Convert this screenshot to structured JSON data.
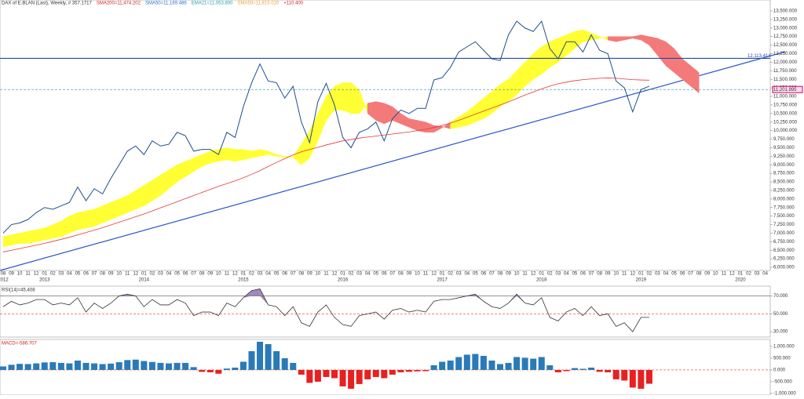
{
  "chart_data": [
    {
      "type": "line",
      "header": [
        {
          "text": "DAX of E.BLAN (Last), Weekly, # 357.1717",
          "color": "#333333"
        },
        {
          "text": "SMA200=11,474.202",
          "color": "#d62020"
        },
        {
          "text": "SMA50=11,169.486",
          "color": "#2a6fd6"
        },
        {
          "text": "EMA21=11,053.800",
          "color": "#20a0b0"
        },
        {
          "text": "SMA50=11,815.020",
          "color": "#f0a030"
        },
        {
          "text": "+110.400",
          "color": "#d62020"
        }
      ],
      "categories": [
        "08",
        "09",
        "10",
        "11",
        "12",
        "01",
        "02",
        "03",
        "04",
        "05",
        "06",
        "07",
        "08",
        "09",
        "10",
        "11",
        "12",
        "01",
        "02",
        "03",
        "04",
        "05",
        "06",
        "07",
        "08",
        "09",
        "10",
        "11",
        "12",
        "01",
        "02",
        "03",
        "04",
        "05",
        "06",
        "07",
        "08",
        "09",
        "10",
        "11",
        "12",
        "01",
        "02",
        "03",
        "04",
        "05",
        "06",
        "07",
        "08",
        "09",
        "10",
        "11",
        "12",
        "01",
        "02",
        "03",
        "04",
        "05",
        "06",
        "07",
        "08",
        "09",
        "10",
        "11",
        "12",
        "01",
        "02",
        "03",
        "04",
        "05",
        "06",
        "07",
        "08",
        "09",
        "10",
        "11",
        "12",
        "01",
        "02",
        "03",
        "04",
        "05",
        "06",
        "07",
        "08",
        "09",
        "10",
        "11",
        "12",
        "01",
        "02",
        "03",
        "04"
      ],
      "years": [
        "2012",
        "2013",
        "2014",
        "2015",
        "2016",
        "2017",
        "2018",
        "2019",
        "2020"
      ],
      "series": [
        {
          "name": "DAX",
          "color": "#1f4e8c",
          "values": [
            7000,
            7250,
            7300,
            7400,
            7600,
            7750,
            7700,
            7800,
            7900,
            8350,
            7950,
            8300,
            8150,
            8600,
            9000,
            9400,
            9550,
            9300,
            9700,
            9550,
            9600,
            9950,
            9850,
            9400,
            9450,
            9450,
            9300,
            9950,
            9800,
            10700,
            11400,
            11950,
            11450,
            11400,
            10950,
            11300,
            10250,
            9650,
            10850,
            11380,
            10750,
            9800,
            9500,
            9950,
            10050,
            10250,
            9700,
            10350,
            10600,
            10500,
            10650,
            10650,
            11480,
            11550,
            11850,
            12300,
            12450,
            12600,
            12350,
            12100,
            12050,
            12800,
            13200,
            13000,
            12900,
            13200,
            12400,
            12100,
            12600,
            12600,
            12300,
            12800,
            12350,
            12250,
            11450,
            11250,
            10550,
            11200,
            11300,
            null,
            null,
            null,
            null,
            null,
            null,
            null,
            null,
            null,
            null,
            null,
            null,
            null,
            null
          ]
        },
        {
          "name": "SMA200",
          "color": "#e03a3a",
          "values": [
            6450,
            6500,
            6550,
            6600,
            6650,
            6700,
            6760,
            6820,
            6880,
            6950,
            7020,
            7090,
            7160,
            7240,
            7320,
            7400,
            7480,
            7560,
            7650,
            7740,
            7830,
            7920,
            8010,
            8100,
            8190,
            8280,
            8370,
            8450,
            8530,
            8620,
            8720,
            8830,
            8950,
            9070,
            9180,
            9290,
            9380,
            9450,
            9510,
            9580,
            9640,
            9700,
            9740,
            9780,
            9810,
            9840,
            9870,
            9900,
            9930,
            9960,
            10000,
            10040,
            10090,
            10150,
            10220,
            10300,
            10390,
            10480,
            10570,
            10660,
            10750,
            10840,
            10940,
            11040,
            11130,
            11220,
            11300,
            11370,
            11420,
            11460,
            11490,
            11510,
            11530,
            11540,
            11530,
            11510,
            11490,
            11480,
            11474,
            null,
            null,
            null,
            null,
            null,
            null,
            null,
            null,
            null,
            null,
            null,
            null,
            null,
            null
          ]
        }
      ],
      "cloud": {
        "up_color": "#ffff33",
        "down_color": "#f47a7a",
        "span_a": [
          6900,
          6950,
          7000,
          7050,
          7100,
          7150,
          7250,
          7350,
          7500,
          7600,
          7650,
          7700,
          7800,
          7900,
          8000,
          8100,
          8250,
          8400,
          8550,
          8700,
          8850,
          9000,
          9100,
          9200,
          9300,
          9400,
          9450,
          9500,
          9450,
          9450,
          9400,
          9450,
          9400,
          9300,
          9250,
          9240,
          9600,
          10000,
          10500,
          11000,
          11300,
          11400,
          11400,
          11200,
          10500,
          10300,
          10200,
          10300,
          10200,
          10100,
          10000,
          9950,
          9950,
          10080,
          10250,
          10400,
          10550,
          10750,
          10950,
          11150,
          11350,
          11500,
          11750,
          12000,
          12250,
          12450,
          12600,
          12700,
          12800,
          12900,
          12950,
          12850,
          12750,
          12650,
          12600,
          12650,
          12700,
          12650,
          12500,
          12200,
          11900,
          11700,
          11500,
          11300,
          11100,
          null,
          null,
          null,
          null,
          null,
          null,
          null,
          null
        ],
        "span_b": [
          6600,
          6650,
          6700,
          6700,
          6750,
          6800,
          6850,
          6900,
          7000,
          7100,
          7150,
          7200,
          7300,
          7400,
          7500,
          7600,
          7700,
          7800,
          7950,
          8100,
          8300,
          8500,
          8650,
          8800,
          8950,
          9050,
          9100,
          9150,
          9100,
          9150,
          9200,
          9250,
          9300,
          9250,
          9220,
          9220,
          9000,
          9200,
          9700,
          10300,
          10600,
          10600,
          10500,
          10500,
          10800,
          10850,
          10800,
          10700,
          10500,
          10350,
          10300,
          10250,
          10150,
          10120,
          10050,
          10100,
          10150,
          10250,
          10350,
          10500,
          10700,
          10850,
          11050,
          11300,
          11500,
          11650,
          11850,
          12000,
          12200,
          12400,
          12600,
          12650,
          12700,
          12750,
          12750,
          12750,
          12750,
          12800,
          12750,
          12700,
          12600,
          12400,
          12100,
          11900,
          11700,
          null,
          null,
          null,
          null,
          null,
          null,
          null,
          null
        ]
      },
      "level": {
        "value": 12113.414,
        "label": "12,113.414",
        "color": "#2946a8"
      },
      "last_price": {
        "value": 11201.895,
        "label": "11,201.895",
        "color": "#2a8fb0"
      },
      "ylim": [
        5910,
        13820
      ],
      "yticks": [
        {
          "value": 6000,
          "label": "6,000.000"
        },
        {
          "value": 6250,
          "label": "6,250.000"
        },
        {
          "value": 6500,
          "label": "6,500.000"
        },
        {
          "value": 6750,
          "label": "6,750.000"
        },
        {
          "value": 7000,
          "label": "7,000.000"
        },
        {
          "value": 7250,
          "label": "7,250.000"
        },
        {
          "value": 7500,
          "label": "7,500.000"
        },
        {
          "value": 7750,
          "label": "7,750.000"
        },
        {
          "value": 8000,
          "label": "8,000.000"
        },
        {
          "value": 8250,
          "label": "8,250.000"
        },
        {
          "value": 8500,
          "label": "8,500.000"
        },
        {
          "value": 8750,
          "label": "8,750.000"
        },
        {
          "value": 9000,
          "label": "9,000.000"
        },
        {
          "value": 9250,
          "label": "9,250.000"
        },
        {
          "value": 9500,
          "label": "9,500.000"
        },
        {
          "value": 9750,
          "label": "9,750.000"
        },
        {
          "value": 10000,
          "label": "10,000.000"
        },
        {
          "value": 10250,
          "label": "10,250.000"
        },
        {
          "value": 10500,
          "label": "10,500.000"
        },
        {
          "value": 10750,
          "label": "10,750.000"
        },
        {
          "value": 11000,
          "label": "11,000.000"
        },
        {
          "value": 11250,
          "label": "11,250.000"
        },
        {
          "value": 11500,
          "label": "11,500.000"
        },
        {
          "value": 11750,
          "label": "11,750.000"
        },
        {
          "value": 12000,
          "label": "12,000.000"
        },
        {
          "value": 12250,
          "label": "12,250.000"
        },
        {
          "value": 12500,
          "label": "12,500.000"
        },
        {
          "value": 12750,
          "label": "12,750.000"
        },
        {
          "value": 13000,
          "label": "13,000.000"
        },
        {
          "value": 13250,
          "label": "13,250.000"
        },
        {
          "value": 13500,
          "label": "13,500.000"
        }
      ]
    },
    {
      "type": "line",
      "title": "RSI(14)=45.408",
      "color": "#333333",
      "fill_color": "#8a6aa8",
      "values": [
        58,
        64,
        60,
        62,
        66,
        66,
        60,
        62,
        60,
        68,
        52,
        62,
        56,
        62,
        70,
        72,
        70,
        58,
        66,
        60,
        60,
        66,
        62,
        48,
        52,
        52,
        48,
        62,
        58,
        68,
        76,
        78,
        60,
        58,
        48,
        58,
        40,
        36,
        52,
        60,
        46,
        38,
        36,
        48,
        50,
        52,
        44,
        54,
        56,
        52,
        54,
        52,
        64,
        66,
        66,
        68,
        70,
        72,
        64,
        58,
        56,
        62,
        72,
        62,
        60,
        68,
        46,
        42,
        52,
        56,
        48,
        58,
        48,
        50,
        36,
        40,
        30,
        46,
        46
      ],
      "ylim": [
        24,
        81
      ],
      "yticks": [
        {
          "value": 30,
          "label": "30.000"
        },
        {
          "value": 50,
          "label": "50.000"
        },
        {
          "value": 70,
          "label": "70.000"
        }
      ]
    },
    {
      "type": "bar",
      "title": "MACD=-586.707",
      "up_color": "#2a7ab8",
      "down_color": "#e82020",
      "values": [
        150,
        220,
        260,
        250,
        280,
        320,
        330,
        300,
        280,
        400,
        300,
        280,
        250,
        270,
        330,
        420,
        440,
        380,
        340,
        300,
        280,
        300,
        300,
        120,
        -80,
        -100,
        -160,
        60,
        100,
        350,
        800,
        1200,
        1100,
        800,
        500,
        300,
        -200,
        -550,
        -500,
        -300,
        -350,
        -700,
        -800,
        -600,
        -400,
        -300,
        -350,
        -200,
        -100,
        -80,
        -60,
        -50,
        200,
        350,
        400,
        550,
        650,
        680,
        600,
        400,
        250,
        300,
        550,
        520,
        480,
        550,
        200,
        -100,
        -50,
        80,
        50,
        100,
        -80,
        -100,
        -400,
        -450,
        -750,
        -800,
        -587
      ],
      "ylim": [
        -1070,
        1300
      ],
      "yticks": [
        {
          "value": -1000,
          "label": "-1,000.000"
        },
        {
          "value": -500,
          "label": "-500.000"
        },
        {
          "value": 0,
          "label": "0.000"
        },
        {
          "value": 500,
          "label": "500.000"
        },
        {
          "value": 1000,
          "label": "1,000.000"
        }
      ]
    }
  ]
}
